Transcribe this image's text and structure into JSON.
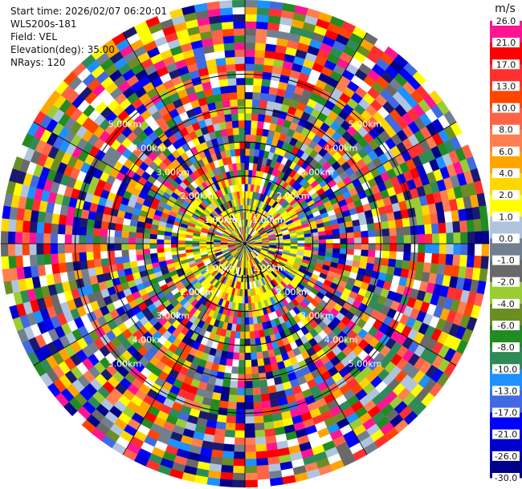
{
  "info": {
    "start_time": "Start time: 2026/02/07 06:20:01",
    "station": "WLS200s-181",
    "field": "Field: VEL",
    "elevation": "Elevation(deg): 35.00",
    "nrays": "NRays: 120"
  },
  "colorbar": {
    "unit": "m/s",
    "ticks": [
      "26.0",
      "21.0",
      "17.0",
      "13.0",
      "10.0",
      "8.0",
      "6.0",
      "4.0",
      "2.0",
      "1.0",
      "0.0",
      "-1.0",
      "-2.0",
      "-4.0",
      "-6.0",
      "-8.0",
      "-10.0",
      "-13.0",
      "-17.0",
      "-21.0",
      "-26.0",
      "-30.0"
    ],
    "colors": [
      "#ff1493",
      "#ff0000",
      "#ff3030",
      "#ff4500",
      "#ff6347",
      "#ff7f50",
      "#ffa500",
      "#ffd700",
      "#ffff00",
      "#b0c4de",
      "#708090",
      "#696969",
      "#9acd32",
      "#6b8e23",
      "#228b22",
      "#2e8b57",
      "#1e90ff",
      "#4169e1",
      "#0000ff",
      "#0000cd",
      "#00008b",
      "#191970"
    ]
  },
  "chart_data": {
    "type": "ppi",
    "field": "VEL",
    "units": "m/s",
    "nrays": 120,
    "elevation_deg": 35.0,
    "range_rings_km": [
      1.0,
      2.0,
      3.0,
      4.0,
      5.0
    ],
    "ring_labels": [
      "1.00km",
      "2.00km",
      "3.00km",
      "4.00km",
      "5.00km"
    ],
    "colorbar_levels": [
      -30.0,
      -26.0,
      -21.0,
      -17.0,
      -13.0,
      -10.0,
      -8.0,
      -6.0,
      -4.0,
      -2.0,
      -1.0,
      0.0,
      1.0,
      2.0,
      4.0,
      6.0,
      8.0,
      10.0,
      13.0,
      17.0,
      21.0,
      26.0
    ]
  }
}
